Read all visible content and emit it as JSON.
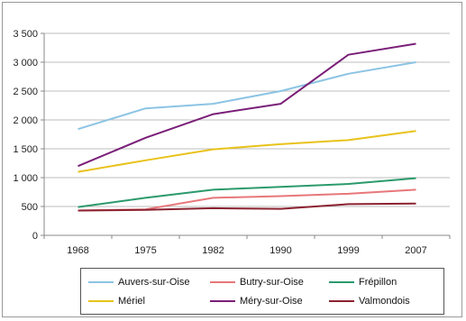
{
  "chart_data": {
    "type": "line",
    "title": "",
    "xlabel": "",
    "ylabel": "",
    "categories": [
      "1968",
      "1975",
      "1982",
      "1990",
      "1999",
      "2007"
    ],
    "ylim": [
      0,
      3500
    ],
    "y_ticks": [
      "0",
      "500",
      "1 000",
      "1 500",
      "2 000",
      "2 500",
      "3 000",
      "3 500"
    ],
    "grid": true,
    "legend_position": "bottom",
    "series": [
      {
        "name": "Auvers-sur-Oise",
        "color": "#8cc4e4",
        "values": [
          1840,
          2200,
          2280,
          2500,
          2800,
          3000
        ]
      },
      {
        "name": "Butry-sur-Oise",
        "color": "#e8777a",
        "values": [
          430,
          450,
          650,
          680,
          720,
          790
        ]
      },
      {
        "name": "Frépillon",
        "color": "#2b9a6c",
        "values": [
          490,
          650,
          790,
          840,
          890,
          990
        ]
      },
      {
        "name": "Mériel",
        "color": "#e8c21a",
        "values": [
          1100,
          1300,
          1490,
          1580,
          1650,
          1810
        ]
      },
      {
        "name": "Méry-sur-Oise",
        "color": "#7a1f78",
        "values": [
          1200,
          1690,
          2100,
          2280,
          3130,
          3320
        ]
      },
      {
        "name": "Valmondois",
        "color": "#8b2230",
        "values": [
          430,
          440,
          470,
          460,
          540,
          550
        ]
      }
    ]
  }
}
